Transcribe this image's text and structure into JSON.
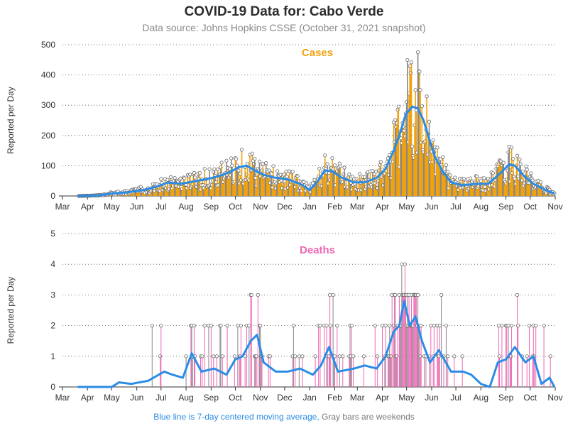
{
  "title": "COVID-19 Data for: Cabo Verde",
  "subtitle": "Data source: Johns Hopkins CSSE (October 31, 2021 snapshot)",
  "footer": {
    "blue": "Blue line is 7-day centered moving average,",
    "gray": "Gray bars are weekends"
  },
  "colors": {
    "cases": "#f0a20f",
    "deaths": "#ee66b4",
    "avg": "#2b8ce6",
    "weekend": "#888888",
    "axis": "#333333"
  },
  "chart_data": [
    {
      "type": "bar",
      "title": "Cases",
      "ylabel": "Reported per Day",
      "ylim": [
        0,
        500
      ],
      "yticks": [
        0,
        100,
        200,
        300,
        400,
        500
      ],
      "grid": "horizontal-dotted",
      "x_tick_labels": [
        "Mar",
        "Apr",
        "May",
        "Jun",
        "Jul",
        "Aug",
        "Sep",
        "Oct",
        "Nov",
        "Dec",
        "Jan",
        "Feb",
        "Mar",
        "Apr",
        "May",
        "Jun",
        "Jul",
        "Aug",
        "Sep",
        "Oct",
        "Nov"
      ],
      "x_range": [
        "2020-03-01",
        "2021-11-01"
      ],
      "data_start": "2020-03-20",
      "data_end": "2021-10-31",
      "moving_average_keypoints": [
        [
          "2020-03-20",
          0
        ],
        [
          "2020-04-15",
          2
        ],
        [
          "2020-05-01",
          8
        ],
        [
          "2020-05-20",
          12
        ],
        [
          "2020-06-10",
          20
        ],
        [
          "2020-06-25",
          30
        ],
        [
          "2020-07-10",
          45
        ],
        [
          "2020-07-25",
          40
        ],
        [
          "2020-08-10",
          48
        ],
        [
          "2020-08-25",
          55
        ],
        [
          "2020-09-10",
          65
        ],
        [
          "2020-09-25",
          80
        ],
        [
          "2020-10-05",
          95
        ],
        [
          "2020-10-15",
          100
        ],
        [
          "2020-10-25",
          85
        ],
        [
          "2020-11-05",
          70
        ],
        [
          "2020-11-20",
          60
        ],
        [
          "2020-12-05",
          55
        ],
        [
          "2020-12-20",
          40
        ],
        [
          "2021-01-01",
          20
        ],
        [
          "2021-01-10",
          45
        ],
        [
          "2021-01-20",
          85
        ],
        [
          "2021-01-30",
          80
        ],
        [
          "2021-02-10",
          60
        ],
        [
          "2021-02-25",
          45
        ],
        [
          "2021-03-10",
          45
        ],
        [
          "2021-03-25",
          60
        ],
        [
          "2021-04-05",
          90
        ],
        [
          "2021-04-15",
          150
        ],
        [
          "2021-04-22",
          200
        ],
        [
          "2021-04-30",
          270
        ],
        [
          "2021-05-08",
          295
        ],
        [
          "2021-05-15",
          290
        ],
        [
          "2021-05-22",
          250
        ],
        [
          "2021-05-30",
          180
        ],
        [
          "2021-06-05",
          130
        ],
        [
          "2021-06-15",
          80
        ],
        [
          "2021-06-25",
          45
        ],
        [
          "2021-07-10",
          35
        ],
        [
          "2021-07-25",
          40
        ],
        [
          "2021-08-10",
          40
        ],
        [
          "2021-08-25",
          75
        ],
        [
          "2021-09-05",
          105
        ],
        [
          "2021-09-12",
          100
        ],
        [
          "2021-09-22",
          70
        ],
        [
          "2021-10-05",
          40
        ],
        [
          "2021-10-20",
          20
        ],
        [
          "2021-10-31",
          8
        ]
      ]
    },
    {
      "type": "bar",
      "title": "Deaths",
      "ylabel": "Reported per Day",
      "ylim": [
        0,
        5
      ],
      "yticks": [
        0,
        1,
        2,
        3,
        4,
        5
      ],
      "grid": "horizontal-dotted",
      "x_tick_labels": [
        "Mar",
        "Apr",
        "May",
        "Jun",
        "Jul",
        "Aug",
        "Sep",
        "Oct",
        "Nov",
        "Dec",
        "Jan",
        "Feb",
        "Mar",
        "Apr",
        "May",
        "Jun",
        "Jul",
        "Aug",
        "Sep",
        "Oct",
        "Nov"
      ],
      "x_range": [
        "2020-03-01",
        "2021-11-01"
      ],
      "data_start": "2020-03-20",
      "data_end": "2021-10-31",
      "moving_average_keypoints": [
        [
          "2020-03-20",
          0
        ],
        [
          "2020-05-01",
          0
        ],
        [
          "2020-05-10",
          0.15
        ],
        [
          "2020-05-25",
          0.1
        ],
        [
          "2020-06-15",
          0.2
        ],
        [
          "2020-07-05",
          0.5
        ],
        [
          "2020-07-15",
          0.4
        ],
        [
          "2020-07-28",
          0.3
        ],
        [
          "2020-08-08",
          1.1
        ],
        [
          "2020-08-20",
          0.5
        ],
        [
          "2020-09-05",
          0.6
        ],
        [
          "2020-09-20",
          0.4
        ],
        [
          "2020-10-01",
          0.9
        ],
        [
          "2020-10-10",
          1.0
        ],
        [
          "2020-10-20",
          1.5
        ],
        [
          "2020-10-28",
          1.7
        ],
        [
          "2020-11-05",
          0.8
        ],
        [
          "2020-11-20",
          0.5
        ],
        [
          "2020-12-05",
          0.5
        ],
        [
          "2020-12-20",
          0.6
        ],
        [
          "2021-01-05",
          0.4
        ],
        [
          "2021-01-15",
          0.7
        ],
        [
          "2021-01-25",
          1.3
        ],
        [
          "2021-02-05",
          0.5
        ],
        [
          "2021-02-25",
          0.6
        ],
        [
          "2021-03-10",
          0.7
        ],
        [
          "2021-03-25",
          0.6
        ],
        [
          "2021-04-05",
          1.0
        ],
        [
          "2021-04-15",
          1.8
        ],
        [
          "2021-04-22",
          2.0
        ],
        [
          "2021-04-28",
          2.8
        ],
        [
          "2021-05-05",
          2.0
        ],
        [
          "2021-05-12",
          2.3
        ],
        [
          "2021-05-20",
          1.5
        ],
        [
          "2021-05-30",
          0.8
        ],
        [
          "2021-06-10",
          1.2
        ],
        [
          "2021-06-25",
          0.5
        ],
        [
          "2021-07-10",
          0.5
        ],
        [
          "2021-07-20",
          0.4
        ],
        [
          "2021-08-01",
          0.1
        ],
        [
          "2021-08-12",
          0.0
        ],
        [
          "2021-08-22",
          0.8
        ],
        [
          "2021-09-01",
          0.9
        ],
        [
          "2021-09-12",
          1.3
        ],
        [
          "2021-09-25",
          0.8
        ],
        [
          "2021-10-05",
          1.0
        ],
        [
          "2021-10-15",
          0.1
        ],
        [
          "2021-10-25",
          0.3
        ],
        [
          "2021-10-31",
          0.0
        ]
      ]
    }
  ]
}
